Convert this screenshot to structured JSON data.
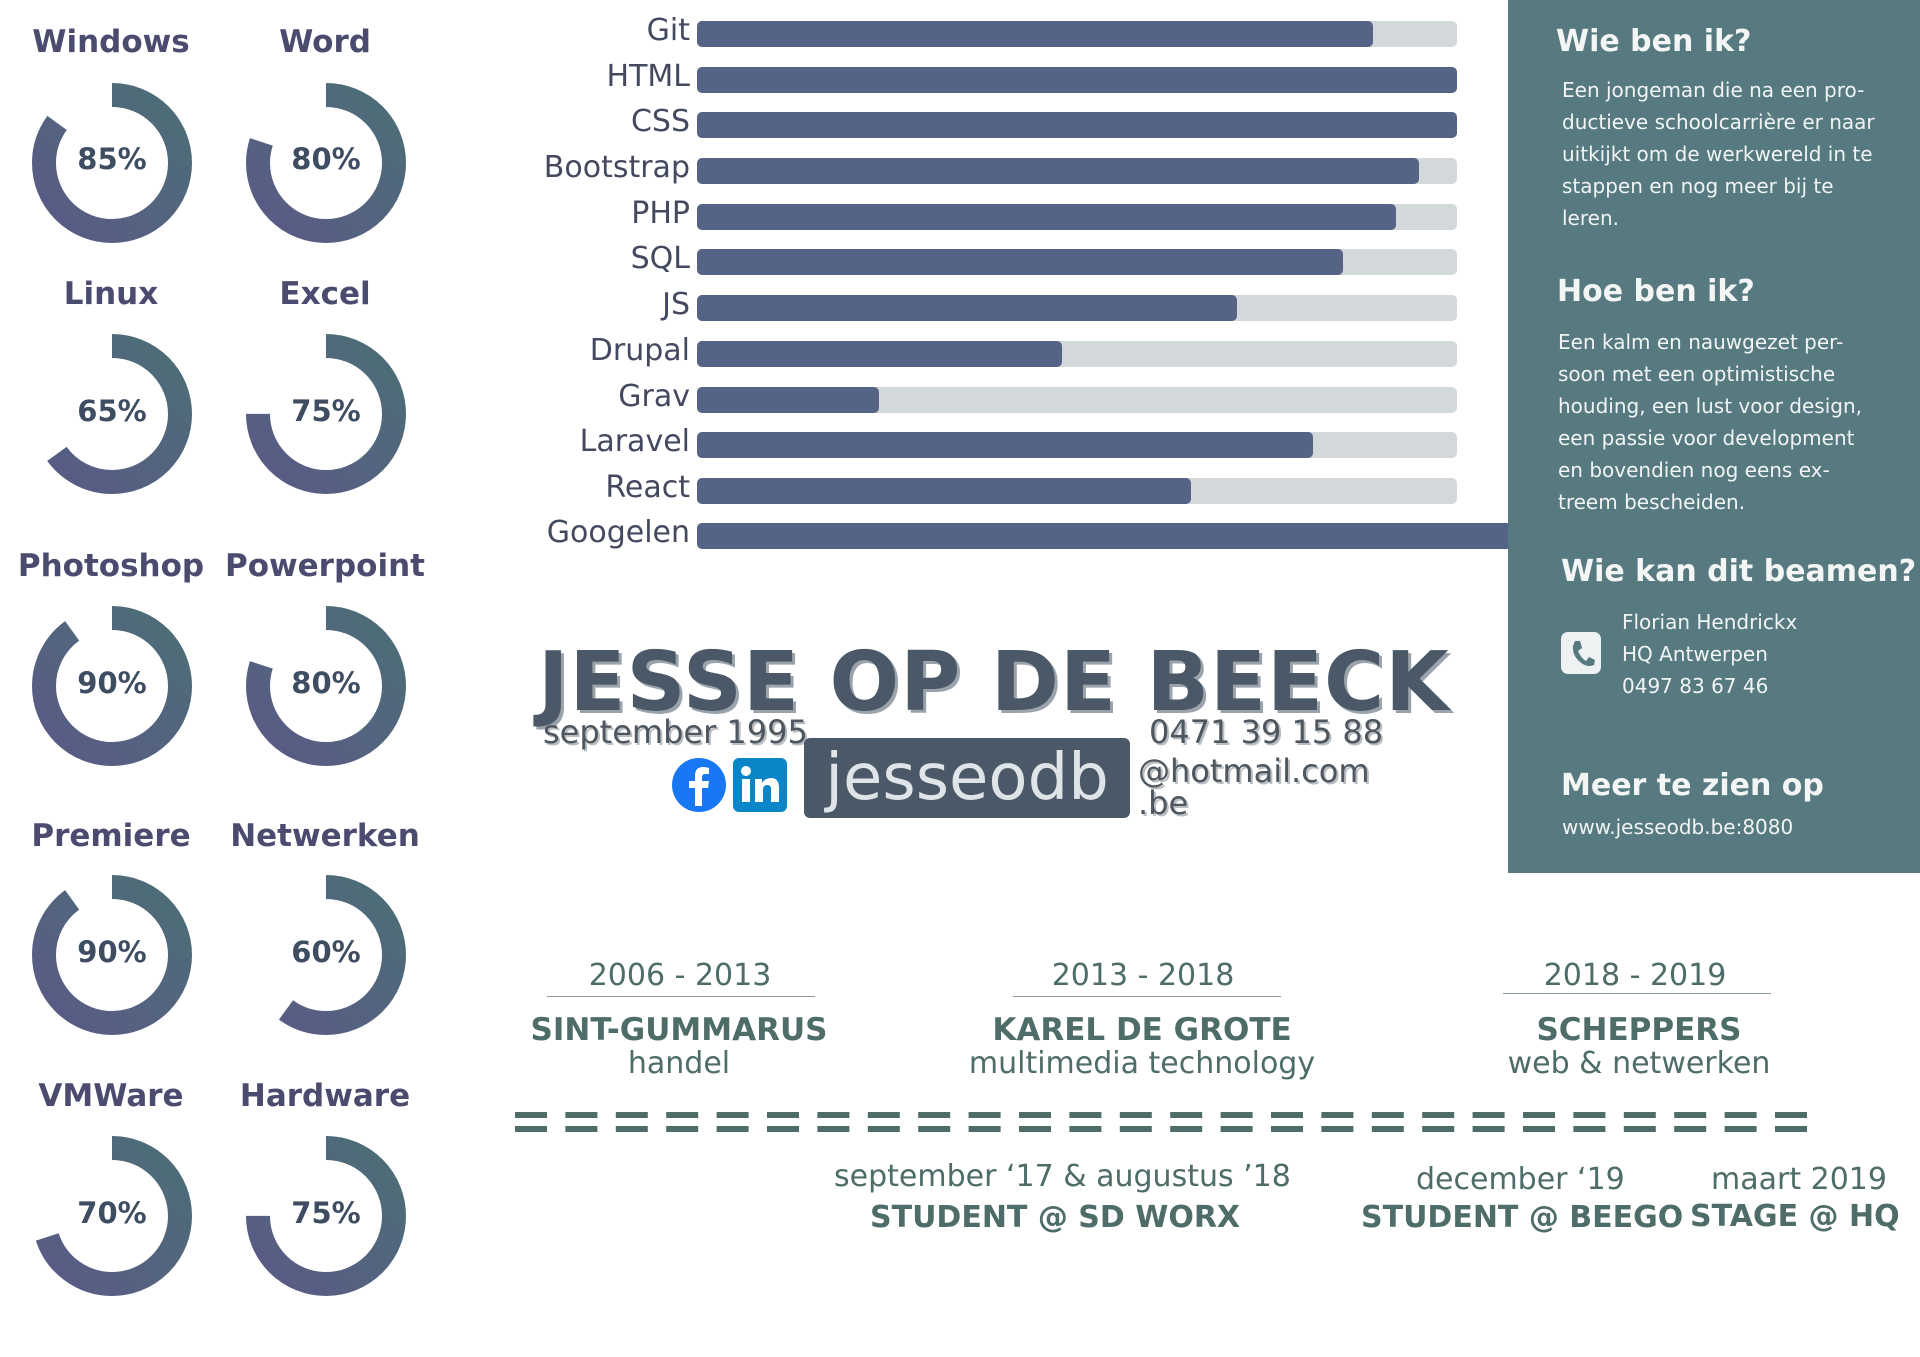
{
  "ring_skills": [
    {
      "label": "Windows",
      "value": 85,
      "text": "85%"
    },
    {
      "label": "Word",
      "value": 80,
      "text": "80%"
    },
    {
      "label": "Linux",
      "value": 65,
      "text": "65%"
    },
    {
      "label": "Excel",
      "value": 75,
      "text": "75%"
    },
    {
      "label": "Photoshop",
      "value": 90,
      "text": "90%"
    },
    {
      "label": "Powerpoint",
      "value": 80,
      "text": "80%"
    },
    {
      "label": "Premiere",
      "value": 90,
      "text": "90%"
    },
    {
      "label": "Netwerken",
      "value": 60,
      "text": "60%"
    },
    {
      "label": "VMWare",
      "value": 70,
      "text": "70%"
    },
    {
      "label": "Hardware",
      "value": 75,
      "text": "75%"
    }
  ],
  "bar_skills": [
    {
      "label": "Git",
      "value": 89
    },
    {
      "label": "HTML",
      "value": 100
    },
    {
      "label": "CSS",
      "value": 100
    },
    {
      "label": "Bootstrap",
      "value": 95
    },
    {
      "label": "PHP",
      "value": 92
    },
    {
      "label": "SQL",
      "value": 85
    },
    {
      "label": "JS",
      "value": 71
    },
    {
      "label": "Drupal",
      "value": 48
    },
    {
      "label": "Grav",
      "value": 24
    },
    {
      "label": "Laravel",
      "value": 81
    },
    {
      "label": "React",
      "value": 65
    },
    {
      "label": "Googelen",
      "value": 110
    }
  ],
  "colors": {
    "ring_start": "#5a5a86",
    "ring_end": "#4c6e76",
    "bar_fill": "#556386",
    "bar_track": "#d3d8db",
    "panel": "#567a80",
    "timeline": "#4e6c68"
  },
  "about": {
    "who_title": "Wie ben ik?",
    "who_lines": [
      "Een jongeman die na een pro-",
      "ductieve schoolcarrière er naar",
      "uitkijkt om de werkwereld in te",
      "stappen en nog meer bij te",
      "leren."
    ],
    "how_title": "Hoe ben ik?",
    "how_lines": [
      "Een kalm en nauwgezet per-",
      "soon met een optimistische",
      "houding, een lust voor design,",
      "een passie voor development",
      "en bovendien nog eens ex-",
      "treem bescheiden."
    ],
    "ref_title": "Wie kan dit beamen?",
    "ref_icon": "phone-icon",
    "ref_name": "Florian Hendrickx",
    "ref_company": "HQ Antwerpen",
    "ref_phone": "0497 83 67 46",
    "more_title": "Meer te zien op",
    "more_url": "www.jesseodb.be:8080"
  },
  "identity": {
    "name": "JESSE OP DE BEECK",
    "birth": "september 1995",
    "phone": "0471 39 15 88",
    "email_user": "jesseodb",
    "email_domain": "@hotmail.com",
    "email_tld": ".be",
    "social_icons": [
      "facebook-icon",
      "linkedin-icon"
    ]
  },
  "education": [
    {
      "years": "2006 - 2013",
      "school": "SINT-GUMMARUS",
      "field": "handel"
    },
    {
      "years": "2013 - 2018",
      "school": "KAREL DE GROTE",
      "field": "multimedia technology"
    },
    {
      "years": "2018 - 2019",
      "school": "SCHEPPERS",
      "field": "web & netwerken"
    }
  ],
  "jobs": [
    {
      "date": "september ‘17 & augustus ’18",
      "title": "STUDENT @ SD WORX"
    },
    {
      "date": "december ‘19",
      "title": "STUDENT @ BEEGO"
    },
    {
      "date": "maart 2019",
      "title": "STAGE @ HQ"
    }
  ]
}
